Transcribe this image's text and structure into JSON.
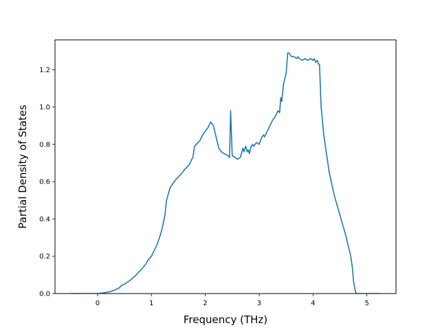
{
  "chart_data": {
    "type": "line",
    "title": "",
    "xlabel": "Frequency (THz)",
    "ylabel": "Partial Density of States",
    "xlim": [
      -0.79,
      5.54
    ],
    "ylim": [
      0.0,
      1.36
    ],
    "xticks": [
      0,
      1,
      2,
      3,
      4,
      5
    ],
    "xtick_labels": [
      "0",
      "1",
      "2",
      "3",
      "4",
      "5"
    ],
    "yticks": [
      0.0,
      0.2,
      0.4,
      0.6,
      0.8,
      1.0,
      1.2
    ],
    "ytick_labels": [
      "0.0",
      "0.2",
      "0.4",
      "0.6",
      "0.8",
      "1.0",
      "1.2"
    ],
    "grid": false,
    "series": [
      {
        "color": "#1f77b4",
        "x": [
          -0.5,
          0.0,
          0.1,
          0.2,
          0.3,
          0.4,
          0.45,
          0.5,
          0.6,
          0.7,
          0.8,
          0.9,
          0.95,
          1.0,
          1.05,
          1.1,
          1.15,
          1.2,
          1.25,
          1.28,
          1.35,
          1.45,
          1.55,
          1.6,
          1.7,
          1.75,
          1.77,
          1.8,
          1.9,
          1.95,
          2.0,
          2.05,
          2.1,
          2.15,
          2.2,
          2.25,
          2.3,
          2.35,
          2.42,
          2.45,
          2.47,
          2.5,
          2.55,
          2.6,
          2.65,
          2.7,
          2.72,
          2.75,
          2.78,
          2.8,
          2.82,
          2.85,
          2.88,
          2.9,
          2.95,
          3.0,
          3.05,
          3.08,
          3.1,
          3.15,
          3.2,
          3.25,
          3.3,
          3.35,
          3.38,
          3.4,
          3.42,
          3.45,
          3.5,
          3.53,
          3.55,
          3.6,
          3.65,
          3.7,
          3.72,
          3.75,
          3.8,
          3.85,
          3.9,
          3.95,
          4.0,
          4.02,
          4.05,
          4.08,
          4.1,
          4.12,
          4.15,
          4.2,
          4.3,
          4.4,
          4.5,
          4.6,
          4.7,
          4.73,
          4.75,
          4.78,
          4.8,
          5.0,
          5.25
        ],
        "y": [
          0.0,
          0.0,
          0.003,
          0.008,
          0.016,
          0.03,
          0.045,
          0.05,
          0.07,
          0.095,
          0.125,
          0.16,
          0.185,
          0.2,
          0.23,
          0.26,
          0.3,
          0.35,
          0.42,
          0.5,
          0.57,
          0.61,
          0.64,
          0.66,
          0.69,
          0.72,
          0.73,
          0.79,
          0.82,
          0.85,
          0.87,
          0.89,
          0.92,
          0.9,
          0.84,
          0.78,
          0.76,
          0.75,
          0.74,
          0.73,
          0.98,
          0.74,
          0.73,
          0.72,
          0.73,
          0.78,
          0.76,
          0.79,
          0.76,
          0.77,
          0.75,
          0.79,
          0.8,
          0.79,
          0.81,
          0.8,
          0.84,
          0.85,
          0.84,
          0.87,
          0.9,
          0.93,
          0.95,
          0.98,
          0.97,
          1.05,
          1.03,
          1.12,
          1.18,
          1.29,
          1.29,
          1.27,
          1.27,
          1.26,
          1.27,
          1.26,
          1.25,
          1.26,
          1.25,
          1.26,
          1.25,
          1.26,
          1.24,
          1.25,
          1.23,
          1.23,
          1.0,
          0.85,
          0.65,
          0.52,
          0.42,
          0.32,
          0.2,
          0.14,
          0.07,
          0.02,
          0.0,
          0.0,
          0.0
        ]
      }
    ]
  }
}
